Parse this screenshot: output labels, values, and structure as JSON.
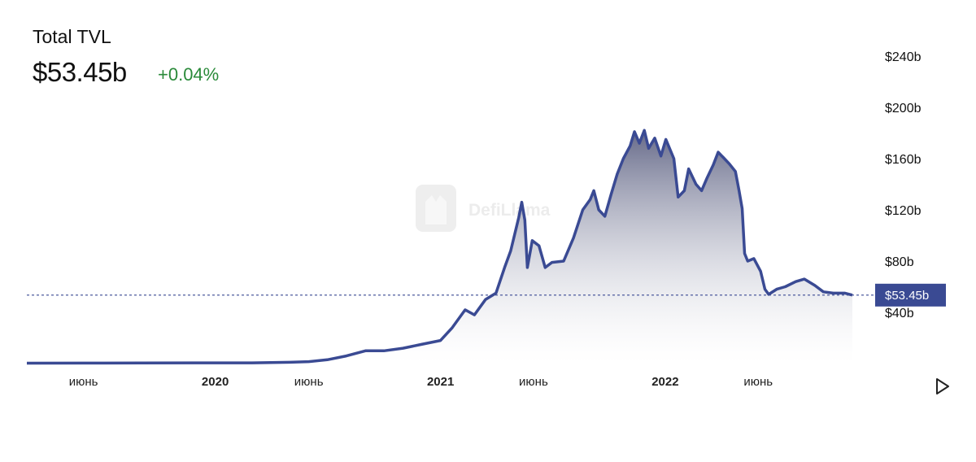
{
  "header": {
    "title": "Total TVL",
    "value": "$53.45b",
    "change": "+0.04%"
  },
  "watermark": {
    "text": "DefiLlama"
  },
  "play_icon": "play-triangle-icon",
  "colors": {
    "line": "#3a4a93",
    "badge": "#3a4a93",
    "change": "#2a8a3a",
    "ref_line": "#3a4a93"
  },
  "chart_data": {
    "type": "area",
    "title": "Total TVL",
    "xlabel": "",
    "ylabel": "",
    "ylim": [
      0,
      250
    ],
    "y_unit": "b",
    "y_ticks": [
      "$40b",
      "$80b",
      "$120b",
      "$160b",
      "$200b",
      "$240b"
    ],
    "y_tick_values": [
      40,
      80,
      120,
      160,
      200,
      240
    ],
    "x_ticks": [
      {
        "label": "июнь",
        "date": "2019-06-01",
        "bold": false
      },
      {
        "label": "2020",
        "date": "2020-01-01",
        "bold": true
      },
      {
        "label": "июнь",
        "date": "2020-06-01",
        "bold": false
      },
      {
        "label": "2021",
        "date": "2021-01-01",
        "bold": true
      },
      {
        "label": "июнь",
        "date": "2021-06-01",
        "bold": false
      },
      {
        "label": "2022",
        "date": "2022-01-01",
        "bold": true
      },
      {
        "label": "июнь",
        "date": "2022-06-01",
        "bold": false
      }
    ],
    "current_value": 53.45,
    "current_label": "$53.45b",
    "series": [
      {
        "values": [
          [
            "2019-03-01",
            0.3
          ],
          [
            "2019-06-01",
            0.4
          ],
          [
            "2019-09-01",
            0.5
          ],
          [
            "2019-12-01",
            0.6
          ],
          [
            "2020-03-01",
            0.6
          ],
          [
            "2020-05-01",
            1.0
          ],
          [
            "2020-06-01",
            1.5
          ],
          [
            "2020-07-01",
            3
          ],
          [
            "2020-08-01",
            6
          ],
          [
            "2020-09-01",
            10
          ],
          [
            "2020-10-01",
            10
          ],
          [
            "2020-11-01",
            12
          ],
          [
            "2020-12-01",
            15
          ],
          [
            "2021-01-01",
            18
          ],
          [
            "2021-01-20",
            28
          ],
          [
            "2021-02-10",
            42
          ],
          [
            "2021-02-25",
            38
          ],
          [
            "2021-03-15",
            50
          ],
          [
            "2021-04-01",
            55
          ],
          [
            "2021-04-15",
            75
          ],
          [
            "2021-04-25",
            88
          ],
          [
            "2021-05-08",
            114
          ],
          [
            "2021-05-13",
            126
          ],
          [
            "2021-05-18",
            112
          ],
          [
            "2021-05-22",
            75
          ],
          [
            "2021-05-30",
            96
          ],
          [
            "2021-06-10",
            92
          ],
          [
            "2021-06-20",
            75
          ],
          [
            "2021-07-01",
            79
          ],
          [
            "2021-07-20",
            80
          ],
          [
            "2021-08-05",
            98
          ],
          [
            "2021-08-20",
            120
          ],
          [
            "2021-09-01",
            128
          ],
          [
            "2021-09-07",
            135
          ],
          [
            "2021-09-15",
            120
          ],
          [
            "2021-09-25",
            115
          ],
          [
            "2021-10-05",
            132
          ],
          [
            "2021-10-15",
            148
          ],
          [
            "2021-10-25",
            160
          ],
          [
            "2021-11-05",
            170
          ],
          [
            "2021-11-12",
            181
          ],
          [
            "2021-11-20",
            172
          ],
          [
            "2021-11-28",
            182
          ],
          [
            "2021-12-05",
            168
          ],
          [
            "2021-12-15",
            176
          ],
          [
            "2021-12-25",
            162
          ],
          [
            "2022-01-02",
            175
          ],
          [
            "2022-01-15",
            160
          ],
          [
            "2022-01-22",
            130
          ],
          [
            "2022-02-01",
            135
          ],
          [
            "2022-02-08",
            152
          ],
          [
            "2022-02-20",
            140
          ],
          [
            "2022-03-01",
            135
          ],
          [
            "2022-03-10",
            145
          ],
          [
            "2022-03-20",
            155
          ],
          [
            "2022-03-28",
            165
          ],
          [
            "2022-04-05",
            161
          ],
          [
            "2022-04-15",
            156
          ],
          [
            "2022-04-25",
            150
          ],
          [
            "2022-05-01",
            135
          ],
          [
            "2022-05-06",
            121
          ],
          [
            "2022-05-10",
            86
          ],
          [
            "2022-05-15",
            80
          ],
          [
            "2022-05-25",
            82
          ],
          [
            "2022-06-05",
            72
          ],
          [
            "2022-06-12",
            58
          ],
          [
            "2022-06-18",
            54
          ],
          [
            "2022-07-01",
            58
          ],
          [
            "2022-07-15",
            60
          ],
          [
            "2022-08-01",
            64
          ],
          [
            "2022-08-15",
            66
          ],
          [
            "2022-09-01",
            61
          ],
          [
            "2022-09-15",
            56
          ],
          [
            "2022-10-01",
            55
          ],
          [
            "2022-10-20",
            55
          ],
          [
            "2022-11-01",
            53.45
          ]
        ]
      }
    ]
  }
}
